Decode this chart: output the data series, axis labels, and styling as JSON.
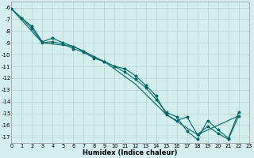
{
  "xlabel": "Humidex (Indice chaleur)",
  "background_color": "#d4eded",
  "grid_color": "#b8d8d8",
  "line_color": "#006868",
  "xlim": [
    0,
    23
  ],
  "ylim": [
    -17.5,
    -5.5
  ],
  "yticks": [
    -6,
    -7,
    -8,
    -9,
    -10,
    -11,
    -12,
    -13,
    -14,
    -15,
    -16,
    -17
  ],
  "xticks": [
    0,
    1,
    2,
    3,
    4,
    5,
    6,
    7,
    8,
    9,
    10,
    11,
    12,
    13,
    14,
    15,
    16,
    17,
    18,
    19,
    20,
    21,
    22,
    23
  ],
  "series1_x": [
    0,
    1,
    2,
    3,
    4,
    5,
    6,
    7,
    8,
    9,
    10,
    11,
    12,
    13,
    14,
    15,
    16,
    17,
    18,
    19,
    20,
    21,
    22
  ],
  "series1_y": [
    -6.1,
    -6.9,
    -7.6,
    -8.9,
    -8.6,
    -9.0,
    -9.3,
    -9.7,
    -10.2,
    -10.6,
    -11.0,
    -11.5,
    -12.1,
    -12.8,
    -13.8,
    -14.9,
    -15.3,
    -16.5,
    -17.2,
    -15.6,
    -16.4,
    -17.1,
    -14.9
  ],
  "series2_x": [
    0,
    1,
    2,
    3,
    4,
    5,
    6,
    7,
    8,
    9,
    10,
    11,
    12,
    13,
    14,
    15,
    16,
    17,
    18,
    19,
    20,
    21,
    22
  ],
  "series2_y": [
    -6.1,
    -6.9,
    -7.8,
    -9.0,
    -8.9,
    -9.1,
    -9.5,
    -9.8,
    -10.3,
    -10.6,
    -11.0,
    -11.2,
    -11.8,
    -12.6,
    -13.5,
    -15.1,
    -15.6,
    -15.3,
    -16.8,
    -16.1,
    -16.7,
    -17.2,
    -15.2
  ],
  "series3_x": [
    0,
    3,
    6,
    9,
    12,
    15,
    18,
    22
  ],
  "series3_y": [
    -6.1,
    -9.0,
    -9.3,
    -10.6,
    -12.5,
    -15.1,
    -16.8,
    -15.2
  ]
}
